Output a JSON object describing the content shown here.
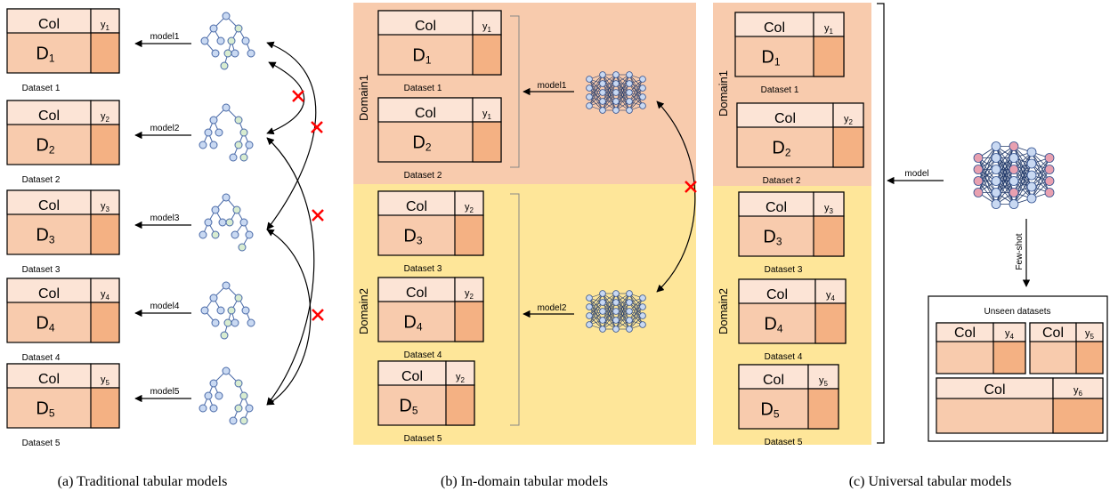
{
  "colors": {
    "header_fill": "#fce4d6",
    "body_fill": "#f8cbad",
    "label_fill": "#f4b183",
    "domain1_bg": "#f8cbad",
    "domain2_bg": "#fee699",
    "cross": "#ff0000",
    "tree_blue": "#c9d9f2",
    "tree_green": "#d8ecd0",
    "nn_red": "#e8a0b0"
  },
  "icons": [
    "tree-icon",
    "neural-network-icon"
  ],
  "panel_a": {
    "caption": "(a) Traditional tabular models",
    "datasets": [
      {
        "col": "Col",
        "d": "D",
        "d_sub": "1",
        "y": "y",
        "y_sub": "1",
        "label": "Dataset 1",
        "model": "model1"
      },
      {
        "col": "Col",
        "d": "D",
        "d_sub": "2",
        "y": "y",
        "y_sub": "2",
        "label": "Dataset 2",
        "model": "model2"
      },
      {
        "col": "Col",
        "d": "D",
        "d_sub": "3",
        "y": "y",
        "y_sub": "3",
        "label": "Dataset 3",
        "model": "model3"
      },
      {
        "col": "Col",
        "d": "D",
        "d_sub": "4",
        "y": "y",
        "y_sub": "4",
        "label": "Dataset 4",
        "model": "model4"
      },
      {
        "col": "Col",
        "d": "D",
        "d_sub": "5",
        "y": "y",
        "y_sub": "5",
        "label": "Dataset 5",
        "model": "model5"
      }
    ]
  },
  "panel_b": {
    "caption": "(b) In-domain tabular models",
    "domain1": "Domain1",
    "domain2": "Domain2",
    "model1": "model1",
    "model2": "model2",
    "datasets": [
      {
        "col": "Col",
        "d": "D",
        "d_sub": "1",
        "y": "y",
        "y_sub": "1",
        "label": "Dataset 1"
      },
      {
        "col": "Col",
        "d": "D",
        "d_sub": "2",
        "y": "y",
        "y_sub": "1",
        "label": "Dataset 2"
      },
      {
        "col": "Col",
        "d": "D",
        "d_sub": "3",
        "y": "y",
        "y_sub": "2",
        "label": "Dataset 3"
      },
      {
        "col": "Col",
        "d": "D",
        "d_sub": "4",
        "y": "y",
        "y_sub": "2",
        "label": "Dataset 4"
      },
      {
        "col": "Col",
        "d": "D",
        "d_sub": "5",
        "y": "y",
        "y_sub": "2",
        "label": "Dataset 5"
      }
    ]
  },
  "panel_c": {
    "caption": "(c) Universal tabular models",
    "domain1": "Domain1",
    "domain2": "Domain2",
    "model": "model",
    "few_shot": "Few-shot",
    "unseen_title": "Unseen datasets",
    "datasets": [
      {
        "col": "Col",
        "d": "D",
        "d_sub": "1",
        "y": "y",
        "y_sub": "1",
        "label": "Dataset 1"
      },
      {
        "col": "Col",
        "d": "D",
        "d_sub": "2",
        "y": "y",
        "y_sub": "2",
        "label": "Dataset 2"
      },
      {
        "col": "Col",
        "d": "D",
        "d_sub": "3",
        "y": "y",
        "y_sub": "3",
        "label": "Dataset 3"
      },
      {
        "col": "Col",
        "d": "D",
        "d_sub": "4",
        "y": "y",
        "y_sub": "4",
        "label": "Dataset 4"
      },
      {
        "col": "Col",
        "d": "D",
        "d_sub": "5",
        "y": "y",
        "y_sub": "5",
        "label": "Dataset 5"
      }
    ],
    "unseen": [
      {
        "col": "Col",
        "y": "y",
        "y_sub": "4"
      },
      {
        "col": "Col",
        "y": "y",
        "y_sub": "5"
      },
      {
        "col": "Col",
        "y": "y",
        "y_sub": "6"
      }
    ]
  }
}
